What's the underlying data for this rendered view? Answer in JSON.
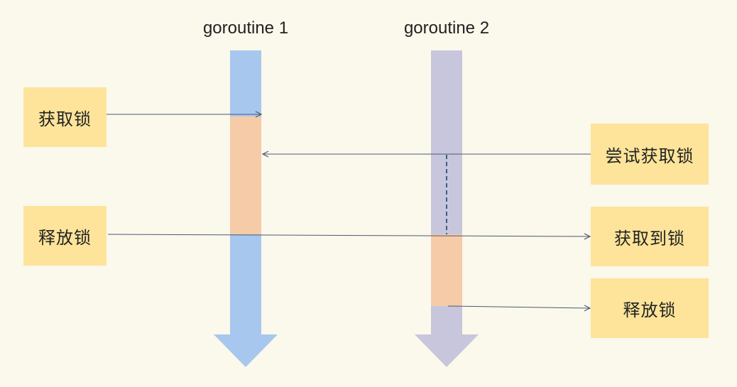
{
  "titles": {
    "g1": "goroutine 1",
    "g2": "goroutine 2"
  },
  "boxes": {
    "left_acquire": "获取锁",
    "left_release": "释放锁",
    "right_try_acquire": "尝试获取锁",
    "right_acquired": "获取到锁",
    "right_release": "释放锁"
  },
  "colors": {
    "background": "#fbf8ec",
    "g1_lane": "#a8c7ee",
    "g2_lane": "#c8c6dc",
    "lock_held": "#f6cba8",
    "label_box": "#fde49a",
    "arrow": "#4a5a73",
    "wait_dash": "#3d5f86"
  }
}
